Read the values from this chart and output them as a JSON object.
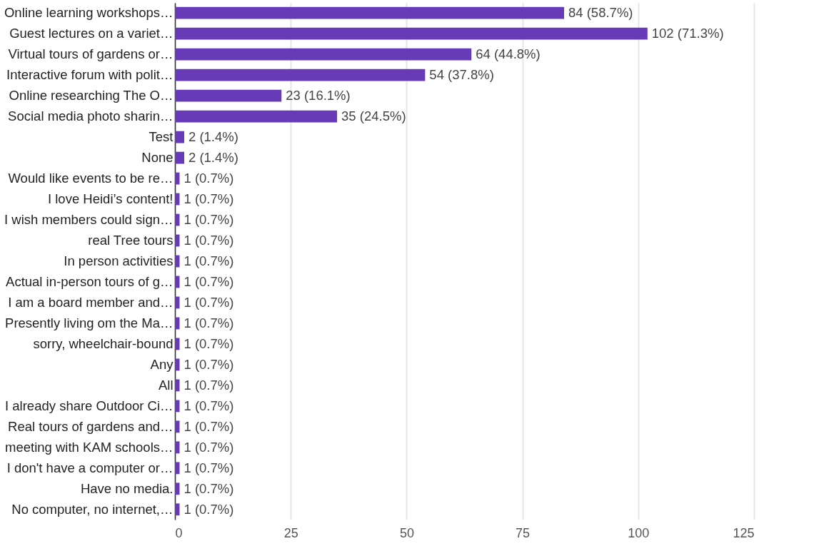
{
  "chart_data": {
    "type": "bar",
    "orientation": "horizontal",
    "categories": [
      "Online learning workshops…",
      "Guest lectures on a variet…",
      "Virtual tours of gardens or…",
      "Interactive forum with polit…",
      "Online researching The O…",
      "Social media photo sharin…",
      "Test",
      "None",
      "Would like events to be re…",
      "I love Heidi’s content!",
      "I wish members could sign…",
      "real Tree tours",
      "In person activities",
      "Actual in-person tours of g…",
      "I am a board member and…",
      "Presently living om the Ma…",
      "sorry, wheelchair-bound",
      "Any",
      "All",
      "I already share Outdoor Ci…",
      "Real tours of gardens and…",
      "meeting with KAM schools…",
      "I don't have a computer or…",
      "Have no media.",
      "No computer, no internet,…"
    ],
    "values": [
      84,
      102,
      64,
      54,
      23,
      35,
      2,
      2,
      1,
      1,
      1,
      1,
      1,
      1,
      1,
      1,
      1,
      1,
      1,
      1,
      1,
      1,
      1,
      1,
      1
    ],
    "value_labels": [
      "84 (58.7%)",
      "102 (71.3%)",
      "64 (44.8%)",
      "54 (37.8%)",
      "23 (16.1%)",
      "35 (24.5%)",
      "2 (1.4%)",
      "2 (1.4%)",
      "1 (0.7%)",
      "1 (0.7%)",
      "1 (0.7%)",
      "1 (0.7%)",
      "1 (0.7%)",
      "1 (0.7%)",
      "1 (0.7%)",
      "1 (0.7%)",
      "1 (0.7%)",
      "1 (0.7%)",
      "1 (0.7%)",
      "1 (0.7%)",
      "1 (0.7%)",
      "1 (0.7%)",
      "1 (0.7%)",
      "1 (0.7%)",
      "1 (0.7%)"
    ],
    "color": "#673ab7",
    "xlim": [
      0,
      125
    ],
    "xticks": [
      0,
      25,
      50,
      75,
      100,
      125
    ],
    "grid": "x"
  }
}
